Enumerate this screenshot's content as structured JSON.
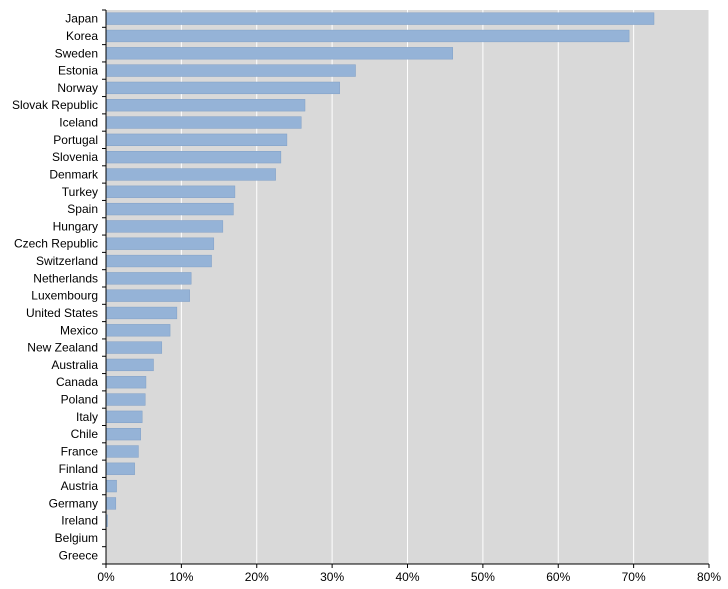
{
  "chart_data": {
    "type": "bar",
    "orientation": "horizontal",
    "categories": [
      "Japan",
      "Korea",
      "Sweden",
      "Estonia",
      "Norway",
      "Slovak Republic",
      "Iceland",
      "Portugal",
      "Slovenia",
      "Denmark",
      "Turkey",
      "Spain",
      "Hungary",
      "Czech Republic",
      "Switzerland",
      "Netherlands",
      "Luxembourg",
      "United States",
      "Mexico",
      "New Zealand",
      "Australia",
      "Canada",
      "Poland",
      "Italy",
      "Chile",
      "France",
      "Finland",
      "Austria",
      "Germany",
      "Ireland",
      "Belgium",
      "Greece"
    ],
    "values": [
      72.7,
      69.4,
      46.0,
      33.1,
      31.0,
      26.4,
      25.9,
      24.0,
      23.2,
      22.5,
      17.1,
      16.9,
      15.5,
      14.3,
      14.0,
      11.3,
      11.1,
      9.4,
      8.5,
      7.4,
      6.3,
      5.3,
      5.2,
      4.8,
      4.6,
      4.3,
      3.8,
      1.4,
      1.3,
      0.2,
      0.0,
      0.0
    ],
    "xlim": [
      0,
      80
    ],
    "xticks": [
      "0%",
      "10%",
      "20%",
      "30%",
      "40%",
      "50%",
      "60%",
      "70%",
      "80%"
    ],
    "grid": true,
    "colors": {
      "bar": "#95b3d7",
      "bar_edge": "#7f9fc6",
      "plot_background": "#d9d9d9",
      "grid": "#ffffff",
      "axis": "#000000"
    }
  }
}
